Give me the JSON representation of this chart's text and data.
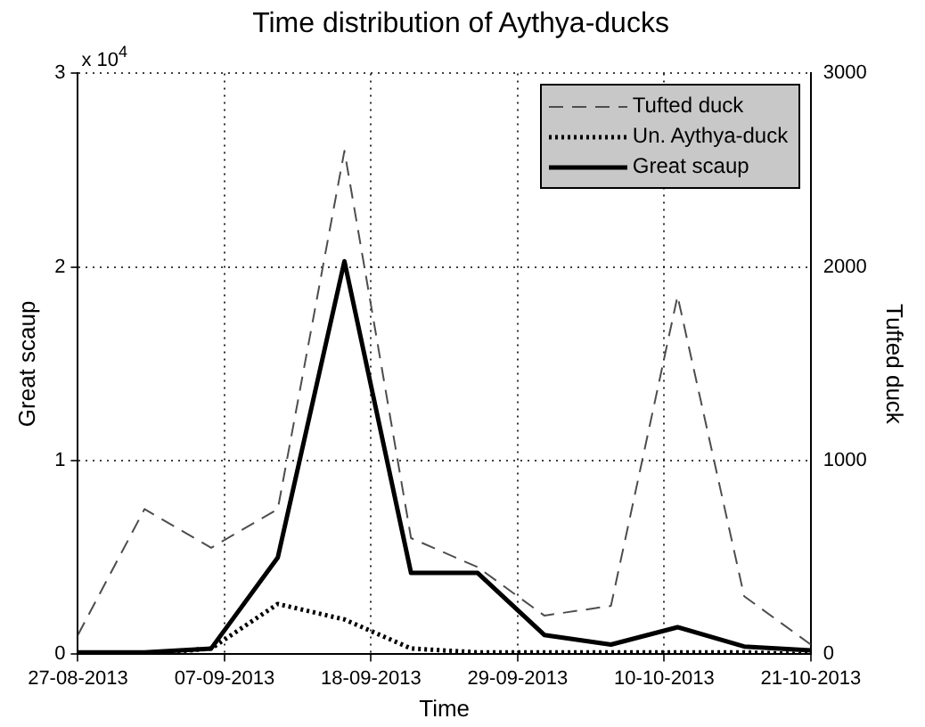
{
  "chart_data": {
    "type": "line",
    "title": "Time distribution of Aythya-ducks",
    "xlabel": "Time",
    "ylabel": "Great scaup",
    "y2label": "Tufted duck",
    "x": [
      "2013-08-27",
      "2013-09-01",
      "2013-09-06",
      "2013-09-11",
      "2013-09-16",
      "2013-09-21",
      "2013-09-26",
      "2013-10-01",
      "2013-10-06",
      "2013-10-11",
      "2013-10-16",
      "2013-10-21"
    ],
    "series": [
      {
        "name": "Tufted duck",
        "color": "#4d4d4d",
        "line_style": "dashed",
        "axis": "y2",
        "values": [
          100,
          750,
          550,
          750,
          2600,
          600,
          450,
          200,
          250,
          1850,
          300,
          50
        ]
      },
      {
        "name": "Un. Aythya-duck",
        "color": "#000000",
        "line_style": "dotted",
        "values": [
          0,
          0,
          0.03,
          0.26,
          0.18,
          0.03,
          0.01,
          0.01,
          0.01,
          0.01,
          0.01,
          0
        ]
      },
      {
        "name": "Great scaup",
        "color": "#000000",
        "line_style": "solid",
        "values": [
          0.01,
          0.01,
          0.03,
          0.5,
          2.03,
          0.42,
          0.42,
          0.1,
          0.05,
          0.14,
          0.04,
          0.02
        ]
      }
    ],
    "xlim": [
      "2013-08-27",
      "2013-10-21"
    ],
    "xticks": [
      {
        "value": "2013-08-27",
        "label": "27-08-2013"
      },
      {
        "value": "2013-09-07",
        "label": "07-09-2013"
      },
      {
        "value": "2013-09-18",
        "label": "18-09-2013"
      },
      {
        "value": "2013-09-29",
        "label": "29-09-2013"
      },
      {
        "value": "2013-10-10",
        "label": "10-10-2013"
      },
      {
        "value": "2013-10-21",
        "label": "21-10-2013"
      }
    ],
    "ylim": [
      0,
      3
    ],
    "yticks": [
      0,
      1,
      2,
      3
    ],
    "y2lim": [
      0,
      3000
    ],
    "y2ticks": [
      0,
      1000,
      2000,
      3000
    ],
    "annotations": [
      "x 10$^{4}$"
    ],
    "grid": true,
    "legend": "top right",
    "marker": "none"
  }
}
